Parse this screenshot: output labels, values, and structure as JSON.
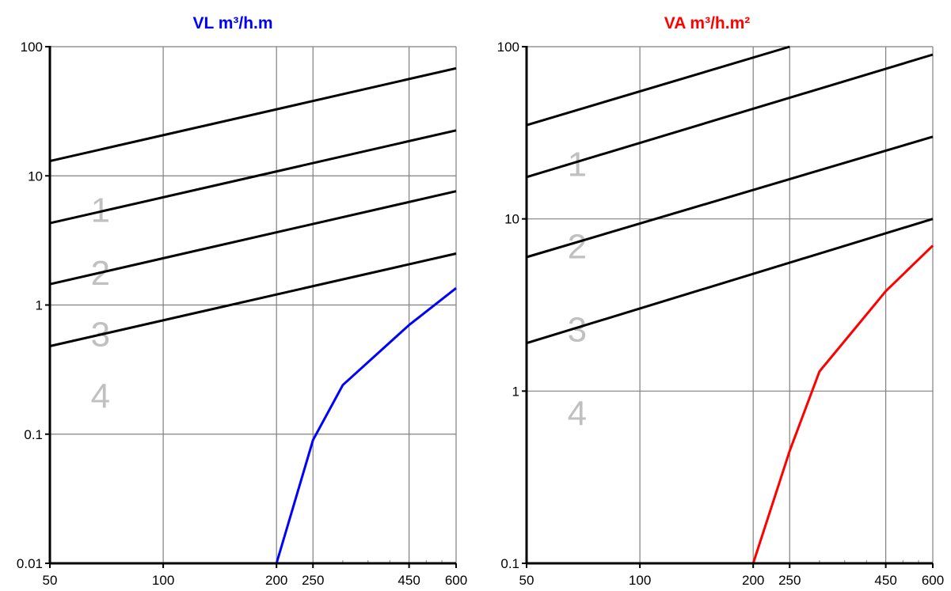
{
  "chart_data": [
    {
      "type": "line",
      "title": "VL m³/h.m",
      "title_color": "#0000ff",
      "x_scale": "log",
      "y_scale": "log",
      "xlim": [
        50,
        600
      ],
      "ylim": [
        0.01,
        100
      ],
      "x_ticks": [
        50,
        100,
        200,
        250,
        450,
        600
      ],
      "y_ticks": [
        0.01,
        0.1,
        1,
        10,
        100
      ],
      "x_tick_labels": [
        "50",
        "100",
        "200",
        "250",
        "450",
        "600"
      ],
      "y_tick_labels": [
        "0.01",
        "0.1",
        "1",
        "10",
        "100"
      ],
      "grid": true,
      "series": [
        {
          "color": "#000000",
          "x": [
            50,
            600
          ],
          "y": [
            13,
            68
          ]
        },
        {
          "color": "#000000",
          "x": [
            50,
            600
          ],
          "y": [
            4.3,
            22.5
          ]
        },
        {
          "color": "#000000",
          "x": [
            50,
            600
          ],
          "y": [
            1.45,
            7.6
          ]
        },
        {
          "color": "#000000",
          "x": [
            50,
            600
          ],
          "y": [
            0.48,
            2.5
          ]
        },
        {
          "color": "#0000ff",
          "x": [
            50,
            200,
            250,
            300,
            450,
            600
          ],
          "y": [
            0.01,
            0.01,
            0.09,
            0.24,
            0.7,
            1.35
          ]
        }
      ],
      "zone_labels": [
        {
          "text": "1",
          "x": 60,
          "y": 5.5
        },
        {
          "text": "2",
          "x": 60,
          "y": 1.8
        },
        {
          "text": "3",
          "x": 60,
          "y": 0.6
        },
        {
          "text": "4",
          "x": 60,
          "y": 0.2
        }
      ]
    },
    {
      "type": "line",
      "title": "VA m³/h.m²",
      "title_color": "#ff0000",
      "x_scale": "log",
      "y_scale": "log",
      "xlim": [
        50,
        600
      ],
      "ylim": [
        0.1,
        100
      ],
      "x_ticks": [
        50,
        100,
        200,
        250,
        450,
        600
      ],
      "y_ticks": [
        0.1,
        1,
        10,
        100
      ],
      "x_tick_labels": [
        "50",
        "100",
        "200",
        "250",
        "450",
        "600"
      ],
      "y_tick_labels": [
        "0.1",
        "1",
        "10",
        "100"
      ],
      "grid": true,
      "series": [
        {
          "color": "#000000",
          "x": [
            50,
            250
          ],
          "y": [
            35,
            100
          ]
        },
        {
          "color": "#000000",
          "x": [
            50,
            600
          ],
          "y": [
            17.5,
            90
          ]
        },
        {
          "color": "#000000",
          "x": [
            50,
            600
          ],
          "y": [
            6,
            30
          ]
        },
        {
          "color": "#000000",
          "x": [
            50,
            600
          ],
          "y": [
            1.9,
            10
          ]
        },
        {
          "color": "#ff0000",
          "x": [
            50,
            200,
            250,
            300,
            450,
            600
          ],
          "y": [
            0.1,
            0.1,
            0.45,
            1.3,
            3.8,
            7
          ]
        }
      ],
      "zone_labels": [
        {
          "text": "1",
          "x": 60,
          "y": 21
        },
        {
          "text": "2",
          "x": 60,
          "y": 7
        },
        {
          "text": "3",
          "x": 60,
          "y": 2.3
        },
        {
          "text": "4",
          "x": 60,
          "y": 0.75
        }
      ]
    }
  ]
}
